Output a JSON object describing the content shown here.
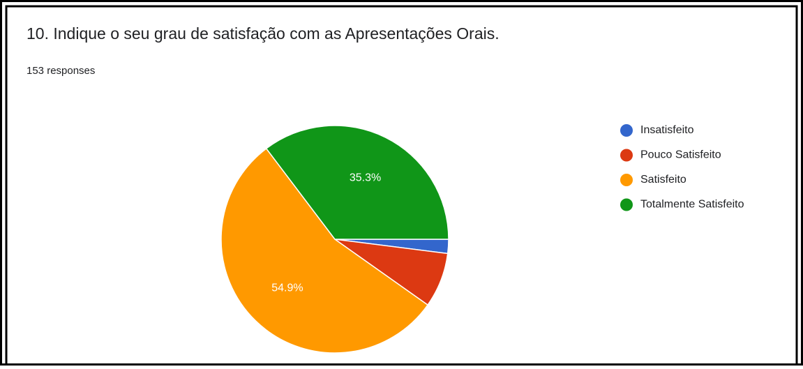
{
  "chart_data": {
    "type": "pie",
    "title": "10. Indique o seu grau de satisfação com as Apresentações Orais.",
    "subtitle": "153 responses",
    "categories": [
      "Insatisfeito",
      "Pouco Satisfeito",
      "Satisfeito",
      "Totalmente Satisfeito"
    ],
    "values": [
      2.0,
      7.8,
      54.9,
      35.3
    ],
    "value_labels": [
      null,
      null,
      "54.9%",
      "35.3%"
    ],
    "colors": [
      "#3366cc",
      "#dc3912",
      "#ff9900",
      "#109618"
    ],
    "start_angle": 90,
    "legend": "right"
  }
}
